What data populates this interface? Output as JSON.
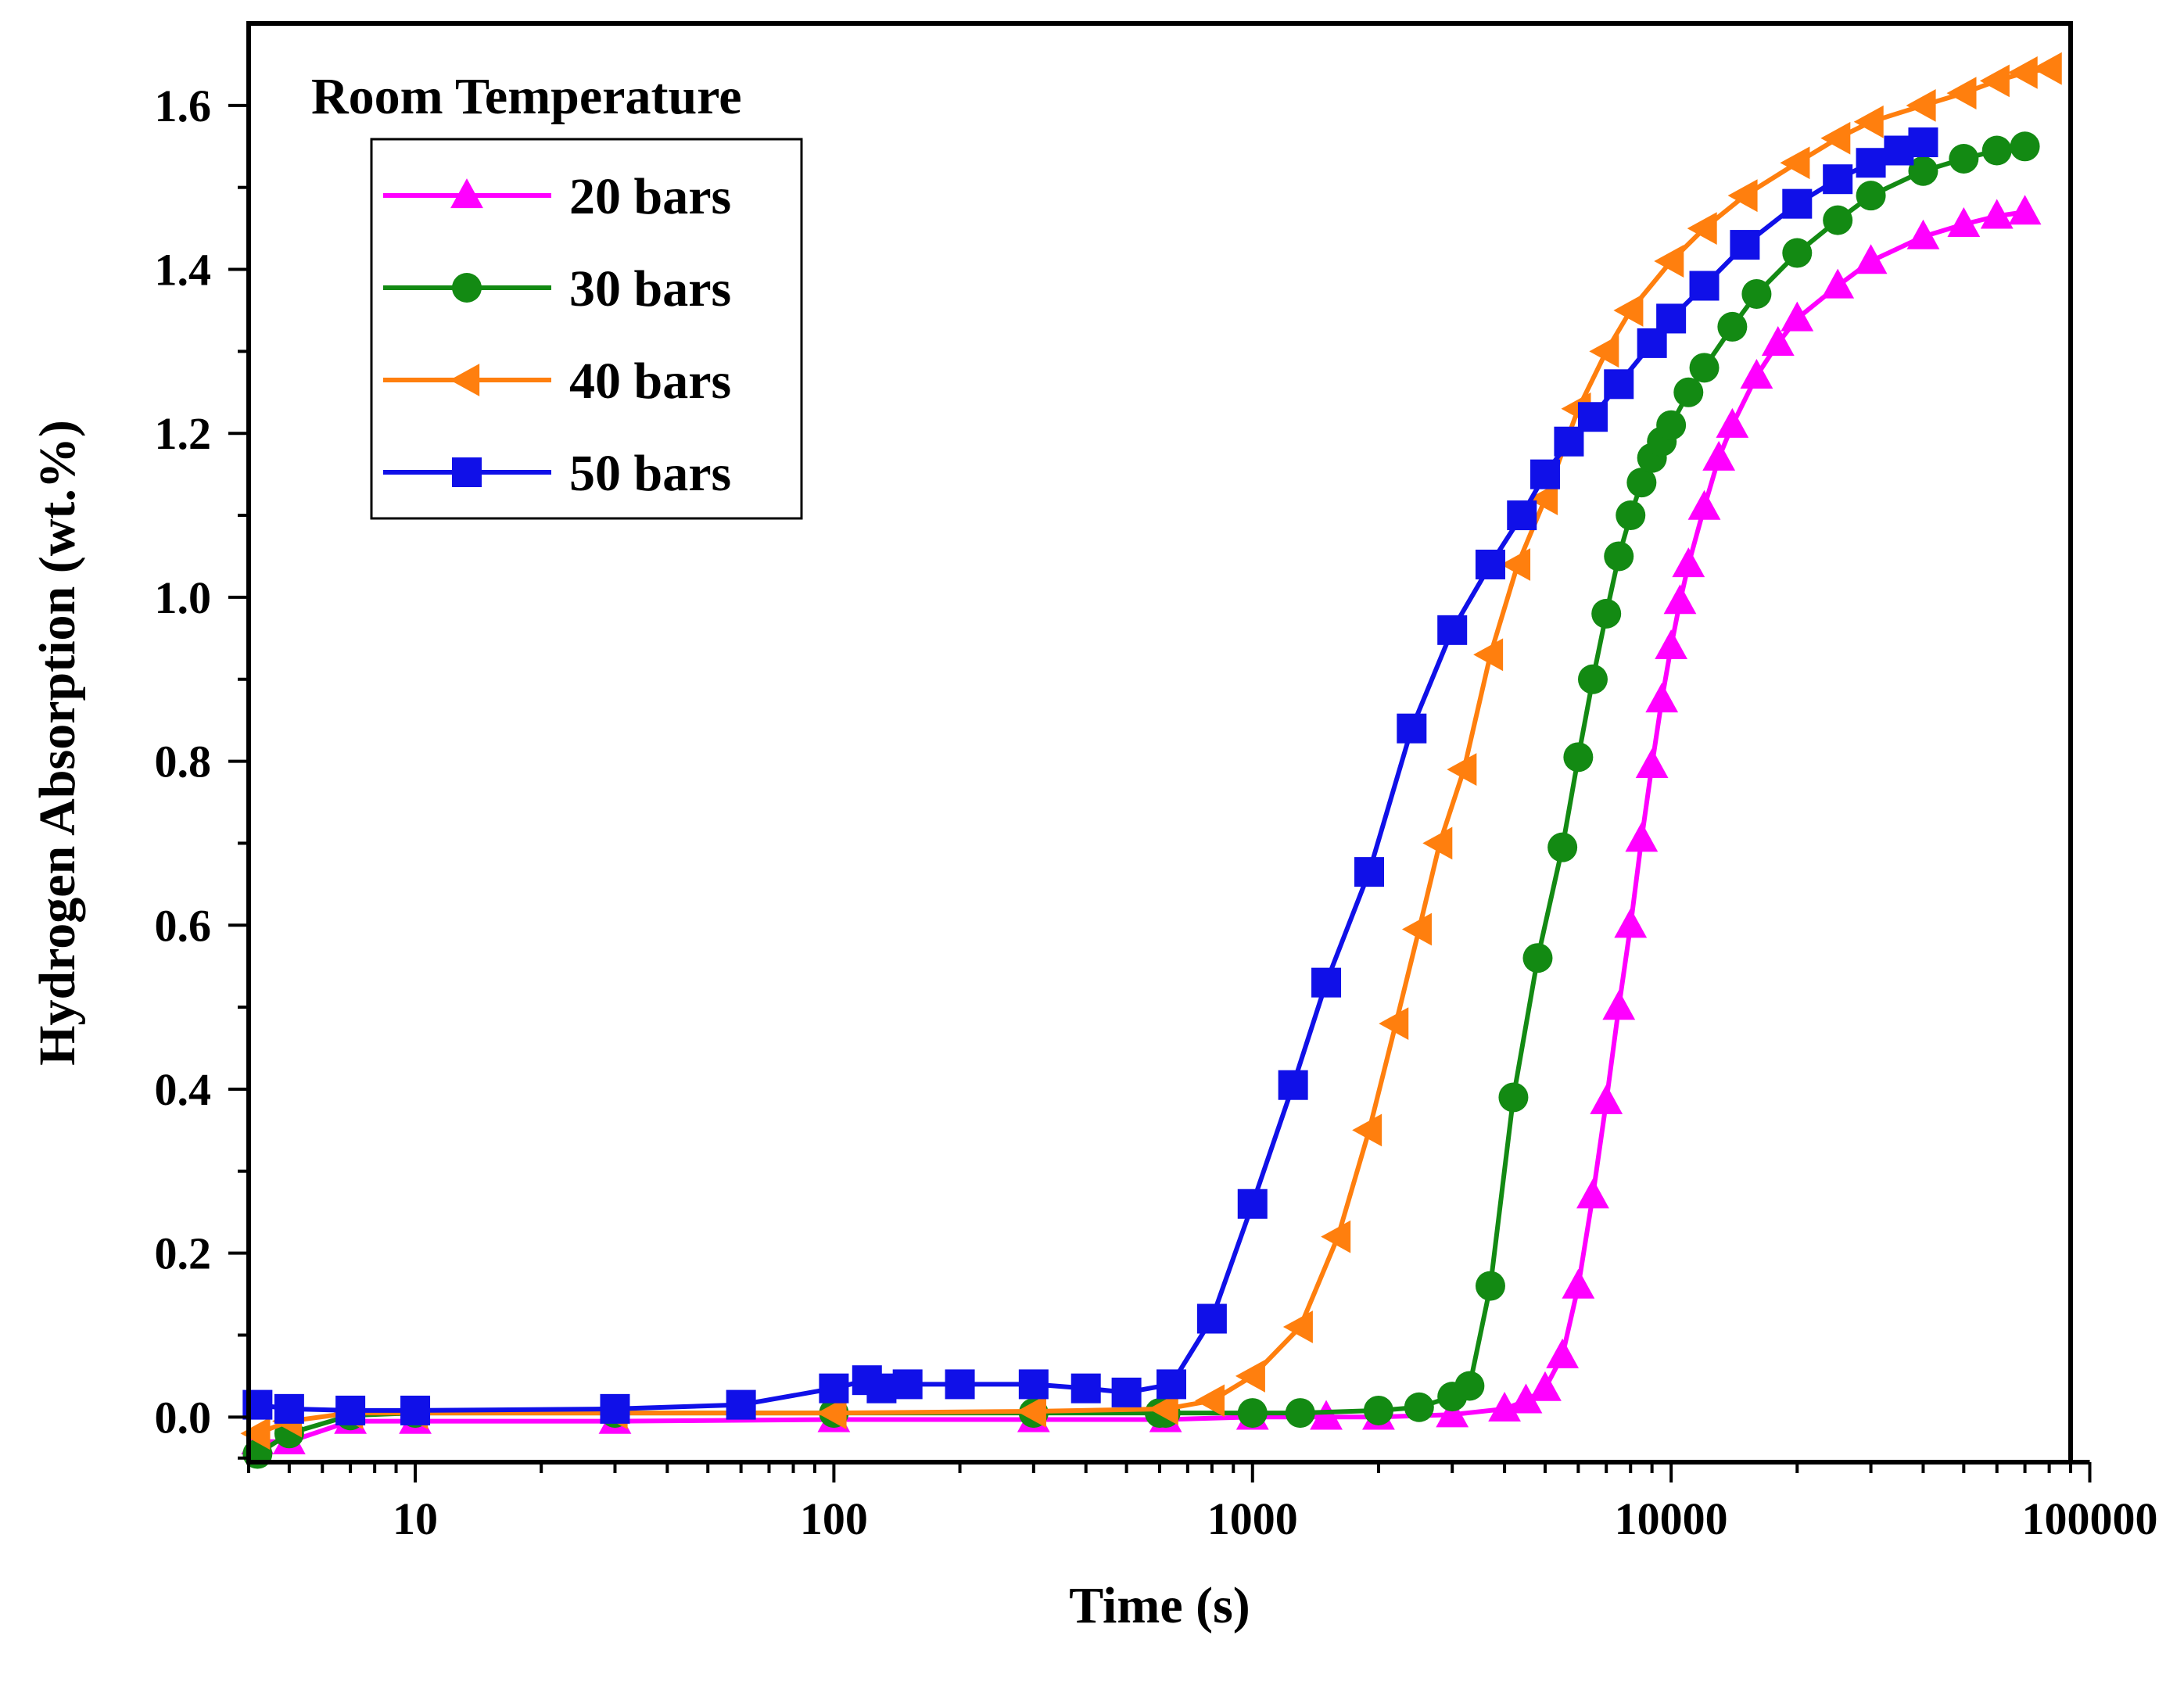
{
  "chart_data": {
    "type": "line",
    "annotation": "Room Temperature",
    "xlabel": "Time (s)",
    "ylabel": "Hydrogen Absorption (wt.%)",
    "xscale": "log",
    "xlim": [
      4,
      90000
    ],
    "ylim": [
      -0.055,
      1.7
    ],
    "xticks": [
      10,
      100,
      1000,
      10000,
      100000
    ],
    "xtick_labels": [
      "10",
      "100",
      "1000",
      "10000",
      "100000"
    ],
    "yticks": [
      0.0,
      0.2,
      0.4,
      0.6,
      0.8,
      1.0,
      1.2,
      1.4,
      1.6
    ],
    "ytick_labels": [
      "0.0",
      "0.2",
      "0.4",
      "0.6",
      "0.8",
      "1.0",
      "1.2",
      "1.4",
      "1.6"
    ],
    "legend_position": "top-left",
    "series": [
      {
        "name": "20 bars",
        "color": "#ff00ff",
        "marker": "triangle-up",
        "x": [
          4.2,
          5,
          7,
          10,
          30,
          100,
          300,
          620,
          1000,
          1500,
          2000,
          3000,
          4000,
          4500,
          5000,
          5500,
          6000,
          6500,
          7000,
          7500,
          8000,
          8500,
          9000,
          9500,
          10000,
          10500,
          11000,
          12000,
          13000,
          14000,
          16000,
          18000,
          20000,
          25000,
          30000,
          40000,
          50000,
          60000,
          70000
        ],
        "y": [
          -0.03,
          -0.03,
          -0.005,
          -0.005,
          -0.005,
          -0.003,
          -0.003,
          -0.003,
          0.0,
          0.0,
          0.0,
          0.003,
          0.01,
          0.02,
          0.035,
          0.075,
          0.16,
          0.27,
          0.385,
          0.5,
          0.6,
          0.705,
          0.795,
          0.875,
          0.94,
          0.995,
          1.04,
          1.11,
          1.17,
          1.21,
          1.27,
          1.31,
          1.34,
          1.38,
          1.41,
          1.44,
          1.455,
          1.465,
          1.47
        ]
      },
      {
        "name": "30 bars",
        "color": "#138a13",
        "marker": "circle",
        "x": [
          4.2,
          5,
          7,
          10,
          30,
          100,
          300,
          600,
          620,
          1000,
          1300,
          2000,
          2500,
          3000,
          3300,
          3700,
          4200,
          4800,
          5500,
          6000,
          6500,
          7000,
          7500,
          8000,
          8500,
          9000,
          9500,
          10000,
          11000,
          12000,
          14000,
          16000,
          20000,
          25000,
          30000,
          40000,
          50000,
          60000,
          70000
        ],
        "y": [
          -0.045,
          -0.02,
          0.002,
          0.005,
          0.005,
          0.005,
          0.005,
          0.005,
          0.005,
          0.005,
          0.005,
          0.008,
          0.012,
          0.025,
          0.038,
          0.16,
          0.39,
          0.56,
          0.695,
          0.805,
          0.9,
          0.98,
          1.05,
          1.1,
          1.14,
          1.17,
          1.19,
          1.21,
          1.25,
          1.28,
          1.33,
          1.37,
          1.42,
          1.46,
          1.49,
          1.52,
          1.535,
          1.545,
          1.55
        ]
      },
      {
        "name": "40 bars",
        "color": "#ff7f0e",
        "marker": "triangle-left",
        "x": [
          4.2,
          5,
          7,
          10,
          30,
          100,
          300,
          620,
          800,
          1000,
          1300,
          1600,
          1900,
          2200,
          2500,
          2800,
          3200,
          3700,
          4300,
          5000,
          6000,
          7000,
          8000,
          10000,
          12000,
          15000,
          20000,
          25000,
          30000,
          40000,
          50000,
          60000,
          70000,
          80000
        ],
        "y": [
          -0.02,
          -0.005,
          0.005,
          0.005,
          0.005,
          0.005,
          0.007,
          0.01,
          0.02,
          0.05,
          0.11,
          0.22,
          0.35,
          0.48,
          0.595,
          0.7,
          0.79,
          0.93,
          1.04,
          1.12,
          1.23,
          1.3,
          1.35,
          1.41,
          1.45,
          1.49,
          1.53,
          1.56,
          1.58,
          1.6,
          1.615,
          1.63,
          1.64,
          1.645
        ]
      },
      {
        "name": "50 bars",
        "color": "#1010e8",
        "marker": "square",
        "x": [
          4.2,
          5,
          7,
          10,
          30,
          60,
          100,
          120,
          130,
          150,
          200,
          300,
          400,
          500,
          640,
          800,
          1000,
          1250,
          1500,
          1900,
          2400,
          3000,
          3700,
          4400,
          5000,
          5700,
          6500,
          7500,
          9000,
          10000,
          12000,
          15000,
          20000,
          25000,
          30000,
          35000,
          40000
        ],
        "y": [
          0.015,
          0.01,
          0.008,
          0.008,
          0.01,
          0.015,
          0.035,
          0.045,
          0.035,
          0.04,
          0.04,
          0.04,
          0.035,
          0.03,
          0.04,
          0.12,
          0.26,
          0.405,
          0.53,
          0.665,
          0.84,
          0.96,
          1.04,
          1.1,
          1.15,
          1.19,
          1.22,
          1.26,
          1.31,
          1.34,
          1.38,
          1.43,
          1.48,
          1.51,
          1.53,
          1.545,
          1.555
        ]
      }
    ]
  }
}
